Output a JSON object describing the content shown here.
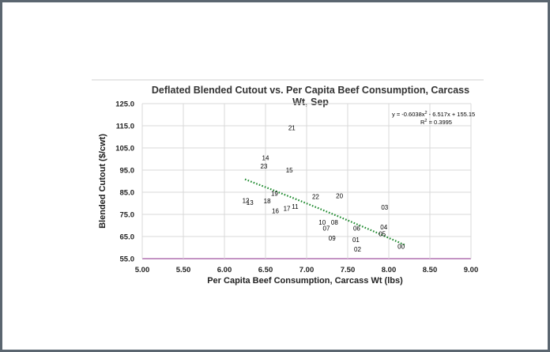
{
  "chart_data": {
    "type": "scatter",
    "title_lines": [
      "Deflated Blended Cutout vs. Per Capita Beef Consumption, Carcass",
      "Wt, Sep"
    ],
    "xlabel": "Per Capita Beef Consumption, Carcass Wt (lbs)",
    "ylabel": "Blended Cutout ($/cwt)",
    "xlim": [
      5.0,
      9.0
    ],
    "ylim": [
      55.0,
      125.0
    ],
    "x_ticks": [
      "5.00",
      "5.50",
      "6.00",
      "6.50",
      "7.00",
      "7.50",
      "8.00",
      "8.50",
      "9.00"
    ],
    "y_ticks": [
      "55.0",
      "65.0",
      "75.0",
      "85.0",
      "95.0",
      "105.0",
      "115.0",
      "125.0"
    ],
    "grid": true,
    "highlight_color": "#c0281c",
    "label_color": "#000000",
    "trend_color": "#1e8a2e",
    "points": [
      {
        "label": "00",
        "x": 8.15,
        "y": 60.5
      },
      {
        "label": "01",
        "x": 7.6,
        "y": 63.5
      },
      {
        "label": "02",
        "x": 7.62,
        "y": 59.3
      },
      {
        "label": "03",
        "x": 7.95,
        "y": 78.3
      },
      {
        "label": "04",
        "x": 7.94,
        "y": 69.2
      },
      {
        "label": "05",
        "x": 7.92,
        "y": 66.2
      },
      {
        "label": "06",
        "x": 7.61,
        "y": 68.8
      },
      {
        "label": "07",
        "x": 7.24,
        "y": 68.8
      },
      {
        "label": "08",
        "x": 7.34,
        "y": 71.4
      },
      {
        "label": "09",
        "x": 7.31,
        "y": 64.2
      },
      {
        "label": "10",
        "x": 7.19,
        "y": 71.4
      },
      {
        "label": "12",
        "x": 6.26,
        "y": 81.3
      },
      {
        "label": "13",
        "x": 6.31,
        "y": 80.3
      },
      {
        "label": "14",
        "x": 6.5,
        "y": 100.6
      },
      {
        "label": "15",
        "x": 6.79,
        "y": 95.0
      },
      {
        "label": "16",
        "x": 6.62,
        "y": 76.6
      },
      {
        "label": "17",
        "x": 6.76,
        "y": 77.6
      },
      {
        "label": "18",
        "x": 6.52,
        "y": 81.0
      },
      {
        "label": "19",
        "x": 6.61,
        "y": 84.4
      },
      {
        "label": "20",
        "x": 7.4,
        "y": 83.4
      },
      {
        "label": "21",
        "x": 6.82,
        "y": 114.1
      },
      {
        "label": "22",
        "x": 7.11,
        "y": 83.0
      },
      {
        "label": "23",
        "x": 6.48,
        "y": 96.8,
        "highlight": true
      },
      {
        "label": "11",
        "x": 6.86,
        "y": 78.6
      }
    ],
    "trendline": {
      "type": "polynomial",
      "coefficients": [
        -0.6038,
        -6.517,
        155.15
      ],
      "x_range": [
        6.25,
        8.2
      ],
      "equation_line1": "y = -0.6038x",
      "equation_sup": "2",
      "equation_line1_rest": " - 6.517x + 155.15",
      "r2_prefix": "R",
      "r2_sup": "2",
      "r2_rest": " = 0.3995"
    }
  }
}
